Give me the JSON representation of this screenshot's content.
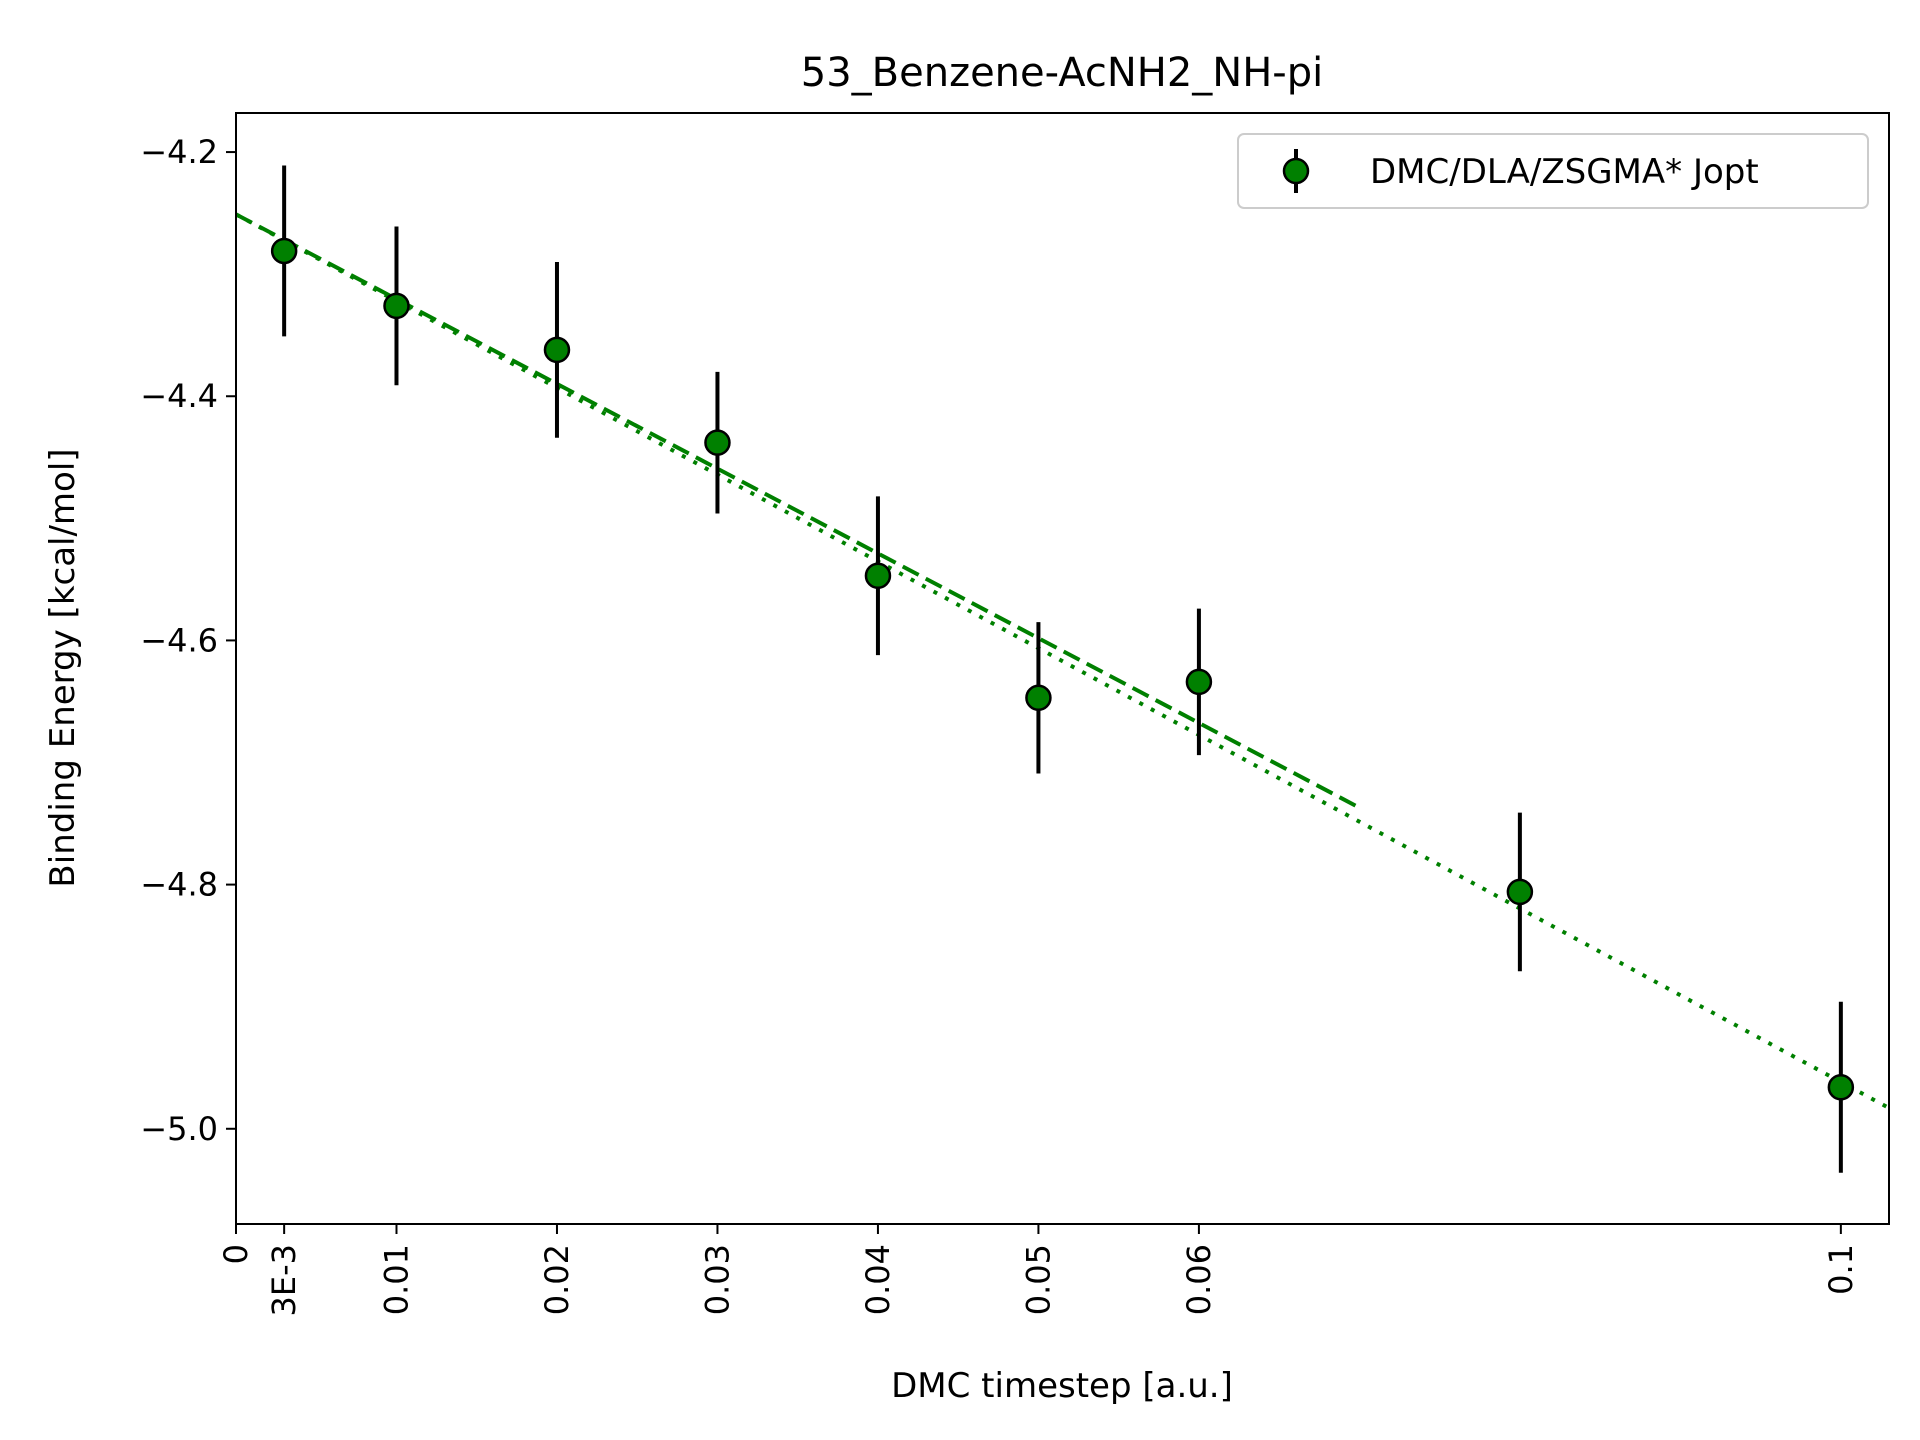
{
  "chart_data": {
    "type": "scatter",
    "title": "53_Benzene-AcNH2_NH-pi",
    "xlabel": "DMC timestep [a.u.]",
    "ylabel": "Binding Energy [kcal/mol]",
    "xlim": [
      0,
      0.103
    ],
    "ylim": [
      -5.078,
      -4.168
    ],
    "x_ticks": [
      {
        "value": 0,
        "label": "0"
      },
      {
        "value": 0.003,
        "label": "3E-3"
      },
      {
        "value": 0.01,
        "label": "0.01"
      },
      {
        "value": 0.02,
        "label": "0.02"
      },
      {
        "value": 0.03,
        "label": "0.03"
      },
      {
        "value": 0.04,
        "label": "0.04"
      },
      {
        "value": 0.05,
        "label": "0.05"
      },
      {
        "value": 0.06,
        "label": "0.06"
      },
      {
        "value": 0.1,
        "label": "0.1"
      }
    ],
    "y_ticks": [
      {
        "value": -4.2,
        "label": "−4.2"
      },
      {
        "value": -4.4,
        "label": "−4.4"
      },
      {
        "value": -4.6,
        "label": "−4.6"
      },
      {
        "value": -4.8,
        "label": "−4.8"
      },
      {
        "value": -5.0,
        "label": "−5.0"
      }
    ],
    "legend_position": "top-right",
    "grid": false,
    "series": [
      {
        "name": "DMC/DLA/ZSGMA* Jopt",
        "color": "#008000",
        "x": [
          0.003,
          0.01,
          0.02,
          0.03,
          0.04,
          0.05,
          0.06,
          0.08,
          0.1
        ],
        "y": [
          -4.281,
          -4.326,
          -4.362,
          -4.438,
          -4.547,
          -4.647,
          -4.634,
          -4.806,
          -4.966
        ],
        "yerr": [
          0.07,
          0.065,
          0.072,
          0.058,
          0.065,
          0.062,
          0.06,
          0.065,
          0.07
        ]
      }
    ],
    "fits": [
      {
        "style": "dashed",
        "color": "#008000",
        "x": [
          0,
          0.07
        ],
        "y": [
          -4.251,
          -4.737
        ]
      },
      {
        "style": "dotted",
        "color": "#008000",
        "x": [
          0,
          0.103
        ],
        "y": [
          -4.251,
          -4.983
        ]
      }
    ]
  }
}
